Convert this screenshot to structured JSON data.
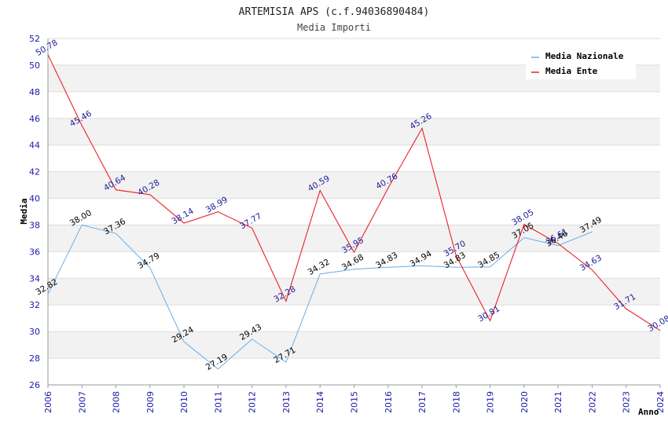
{
  "chart_data": {
    "type": "line",
    "title": "ARTEMISIA APS (c.f.94036890484)",
    "subtitle": "Media Importi",
    "xlabel": "Anno",
    "ylabel": "Media",
    "ylim": [
      26,
      52
    ],
    "yticks": [
      26,
      28,
      30,
      32,
      34,
      36,
      38,
      40,
      42,
      44,
      46,
      48,
      50,
      52
    ],
    "categories": [
      "2006",
      "2007",
      "2008",
      "2009",
      "2010",
      "2011",
      "2012",
      "2013",
      "2014",
      "2015",
      "2016",
      "2017",
      "2018",
      "2019",
      "2020",
      "2021",
      "2022",
      "2023",
      "2024"
    ],
    "legend_position": "top-right",
    "grid": true,
    "series": [
      {
        "name": "Media Nazionale",
        "color": "#6aaee8",
        "label_color": "#000000",
        "values": [
          32.82,
          38.0,
          37.36,
          34.79,
          29.24,
          27.19,
          29.43,
          27.71,
          34.32,
          34.68,
          34.83,
          34.94,
          34.83,
          34.85,
          37.05,
          36.46,
          37.49,
          null,
          null
        ],
        "labels": [
          "32.82",
          "38.00",
          "37.36",
          "34.79",
          "29.24",
          "27.19",
          "29.43",
          "27.71",
          "34.32",
          "34.68",
          "34.83",
          "34.94",
          "34.83",
          "34.85",
          "37.05",
          "36.46",
          "37.49",
          null,
          null
        ]
      },
      {
        "name": "Media Ente",
        "color": "#e8202a",
        "label_color": "#1a1a99",
        "values": [
          50.78,
          45.46,
          40.64,
          40.28,
          38.14,
          38.99,
          37.77,
          32.28,
          40.59,
          35.95,
          40.76,
          45.26,
          35.7,
          30.81,
          38.05,
          36.61,
          34.63,
          31.71,
          30.08
        ],
        "labels": [
          "50.78",
          "45.46",
          "40.64",
          "40.28",
          "38.14",
          "38.99",
          "37.77",
          "32.28",
          "40.59",
          "35.95",
          "40.76",
          "45.26",
          "35.70",
          "30.81",
          "38.05",
          "36.61",
          "34.63",
          "31.71",
          "30.08"
        ]
      }
    ]
  }
}
